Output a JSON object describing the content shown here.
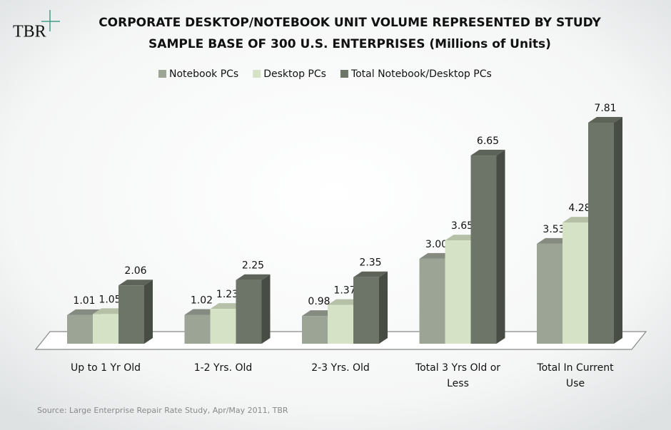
{
  "logo": "TBR",
  "chart_data": {
    "type": "bar3d",
    "title": [
      "CORPORATE DESKTOP/NOTEBOOK UNIT VOLUME REPRESENTED BY STUDY",
      "SAMPLE BASE OF 300 U.S. ENTERPRISES (Millions of Units)"
    ],
    "categories": [
      "Up to 1 Yr Old",
      "1-2 Yrs. Old",
      "2-3 Yrs. Old",
      "Total 3 Yrs Old or Less",
      "Total In Current Use"
    ],
    "series": [
      {
        "name": "Notebook PCs",
        "color": "#9ca496",
        "values": [
          1.01,
          1.02,
          0.98,
          3,
          3.53
        ],
        "value_labels": [
          "1.01",
          "1.02",
          "0.98",
          "3.00",
          "3.53"
        ]
      },
      {
        "name": "Desktop PCs",
        "color": "#d5e2c5",
        "values": [
          1.05,
          1.23,
          1.37,
          3.65,
          4.28
        ],
        "value_labels": [
          "1.05",
          "1.23",
          "1.37",
          "3.65",
          "4.28"
        ]
      },
      {
        "name": "Total Notebook/Desktop PCs",
        "color": "#6d7569",
        "values": [
          2.06,
          2.25,
          2.35,
          6.65,
          7.81
        ],
        "value_labels": [
          "2.06",
          "2.25",
          "2.35",
          "6.65",
          "7.81"
        ]
      }
    ],
    "source": "Source: Large Enterprise Repair Rate Study, Apr/May 2011, TBR"
  }
}
